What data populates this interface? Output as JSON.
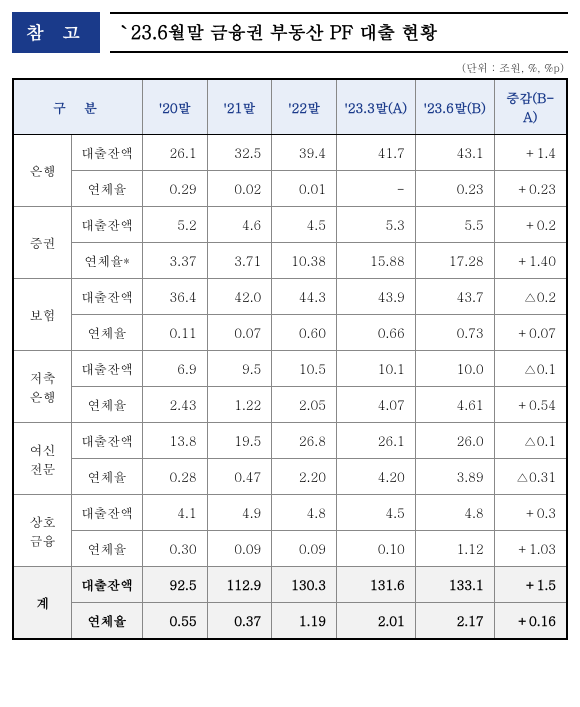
{
  "header": {
    "badge": "참 고",
    "title": "`23.6월말 금융권 부동산 PF 대출 현황",
    "unit": "(단위 : 조원, %, %p)"
  },
  "table": {
    "head": {
      "gubun": "구분",
      "cols": [
        "'20말",
        "'21말",
        "'22말",
        "'23.3말(A)",
        "'23.6말(B)",
        "증감(B-A)"
      ]
    },
    "row_labels": {
      "balance": "대출잔액",
      "rate": "연체율",
      "rate_star": "연체율*"
    },
    "categories": [
      {
        "name": "은행",
        "rows": [
          {
            "label_key": "balance",
            "v": [
              "26.1",
              "32.5",
              "39.4",
              "41.7",
              "43.1",
              "+1.4"
            ]
          },
          {
            "label_key": "rate",
            "v": [
              "0.29",
              "0.02",
              "0.01",
              "-",
              "0.23",
              "+0.23"
            ]
          }
        ]
      },
      {
        "name": "증권",
        "rows": [
          {
            "label_key": "balance",
            "v": [
              "5.2",
              "4.6",
              "4.5",
              "5.3",
              "5.5",
              "+0.2"
            ]
          },
          {
            "label_key": "rate_star",
            "v": [
              "3.37",
              "3.71",
              "10.38",
              "15.88",
              "17.28",
              "+1.40"
            ]
          }
        ]
      },
      {
        "name": "보험",
        "rows": [
          {
            "label_key": "balance",
            "v": [
              "36.4",
              "42.0",
              "44.3",
              "43.9",
              "43.7",
              "△0.2"
            ]
          },
          {
            "label_key": "rate",
            "v": [
              "0.11",
              "0.07",
              "0.60",
              "0.66",
              "0.73",
              "+0.07"
            ]
          }
        ]
      },
      {
        "name": "저축\n은행",
        "rows": [
          {
            "label_key": "balance",
            "v": [
              "6.9",
              "9.5",
              "10.5",
              "10.1",
              "10.0",
              "△0.1"
            ]
          },
          {
            "label_key": "rate",
            "v": [
              "2.43",
              "1.22",
              "2.05",
              "4.07",
              "4.61",
              "+0.54"
            ]
          }
        ]
      },
      {
        "name": "여신\n전문",
        "rows": [
          {
            "label_key": "balance",
            "v": [
              "13.8",
              "19.5",
              "26.8",
              "26.1",
              "26.0",
              "△0.1"
            ]
          },
          {
            "label_key": "rate",
            "v": [
              "0.28",
              "0.47",
              "2.20",
              "4.20",
              "3.89",
              "△0.31"
            ]
          }
        ]
      },
      {
        "name": "상호\n금융",
        "rows": [
          {
            "label_key": "balance",
            "v": [
              "4.1",
              "4.9",
              "4.8",
              "4.5",
              "4.8",
              "+0.3"
            ]
          },
          {
            "label_key": "rate",
            "v": [
              "0.30",
              "0.09",
              "0.09",
              "0.10",
              "1.12",
              "+1.03"
            ]
          }
        ]
      }
    ],
    "total": {
      "name": "계",
      "rows": [
        {
          "label_key": "balance",
          "v": [
            "92.5",
            "112.9",
            "130.3",
            "131.6",
            "133.1",
            "+1.5"
          ]
        },
        {
          "label_key": "rate",
          "v": [
            "0.55",
            "0.37",
            "1.19",
            "2.01",
            "2.17",
            "+0.16"
          ]
        }
      ]
    }
  },
  "style": {
    "badge_bg": "#1a3a8a",
    "thead_bg": "#e8eef8",
    "thead_color": "#1a3a8a",
    "total_bg": "#f2f2f2"
  }
}
